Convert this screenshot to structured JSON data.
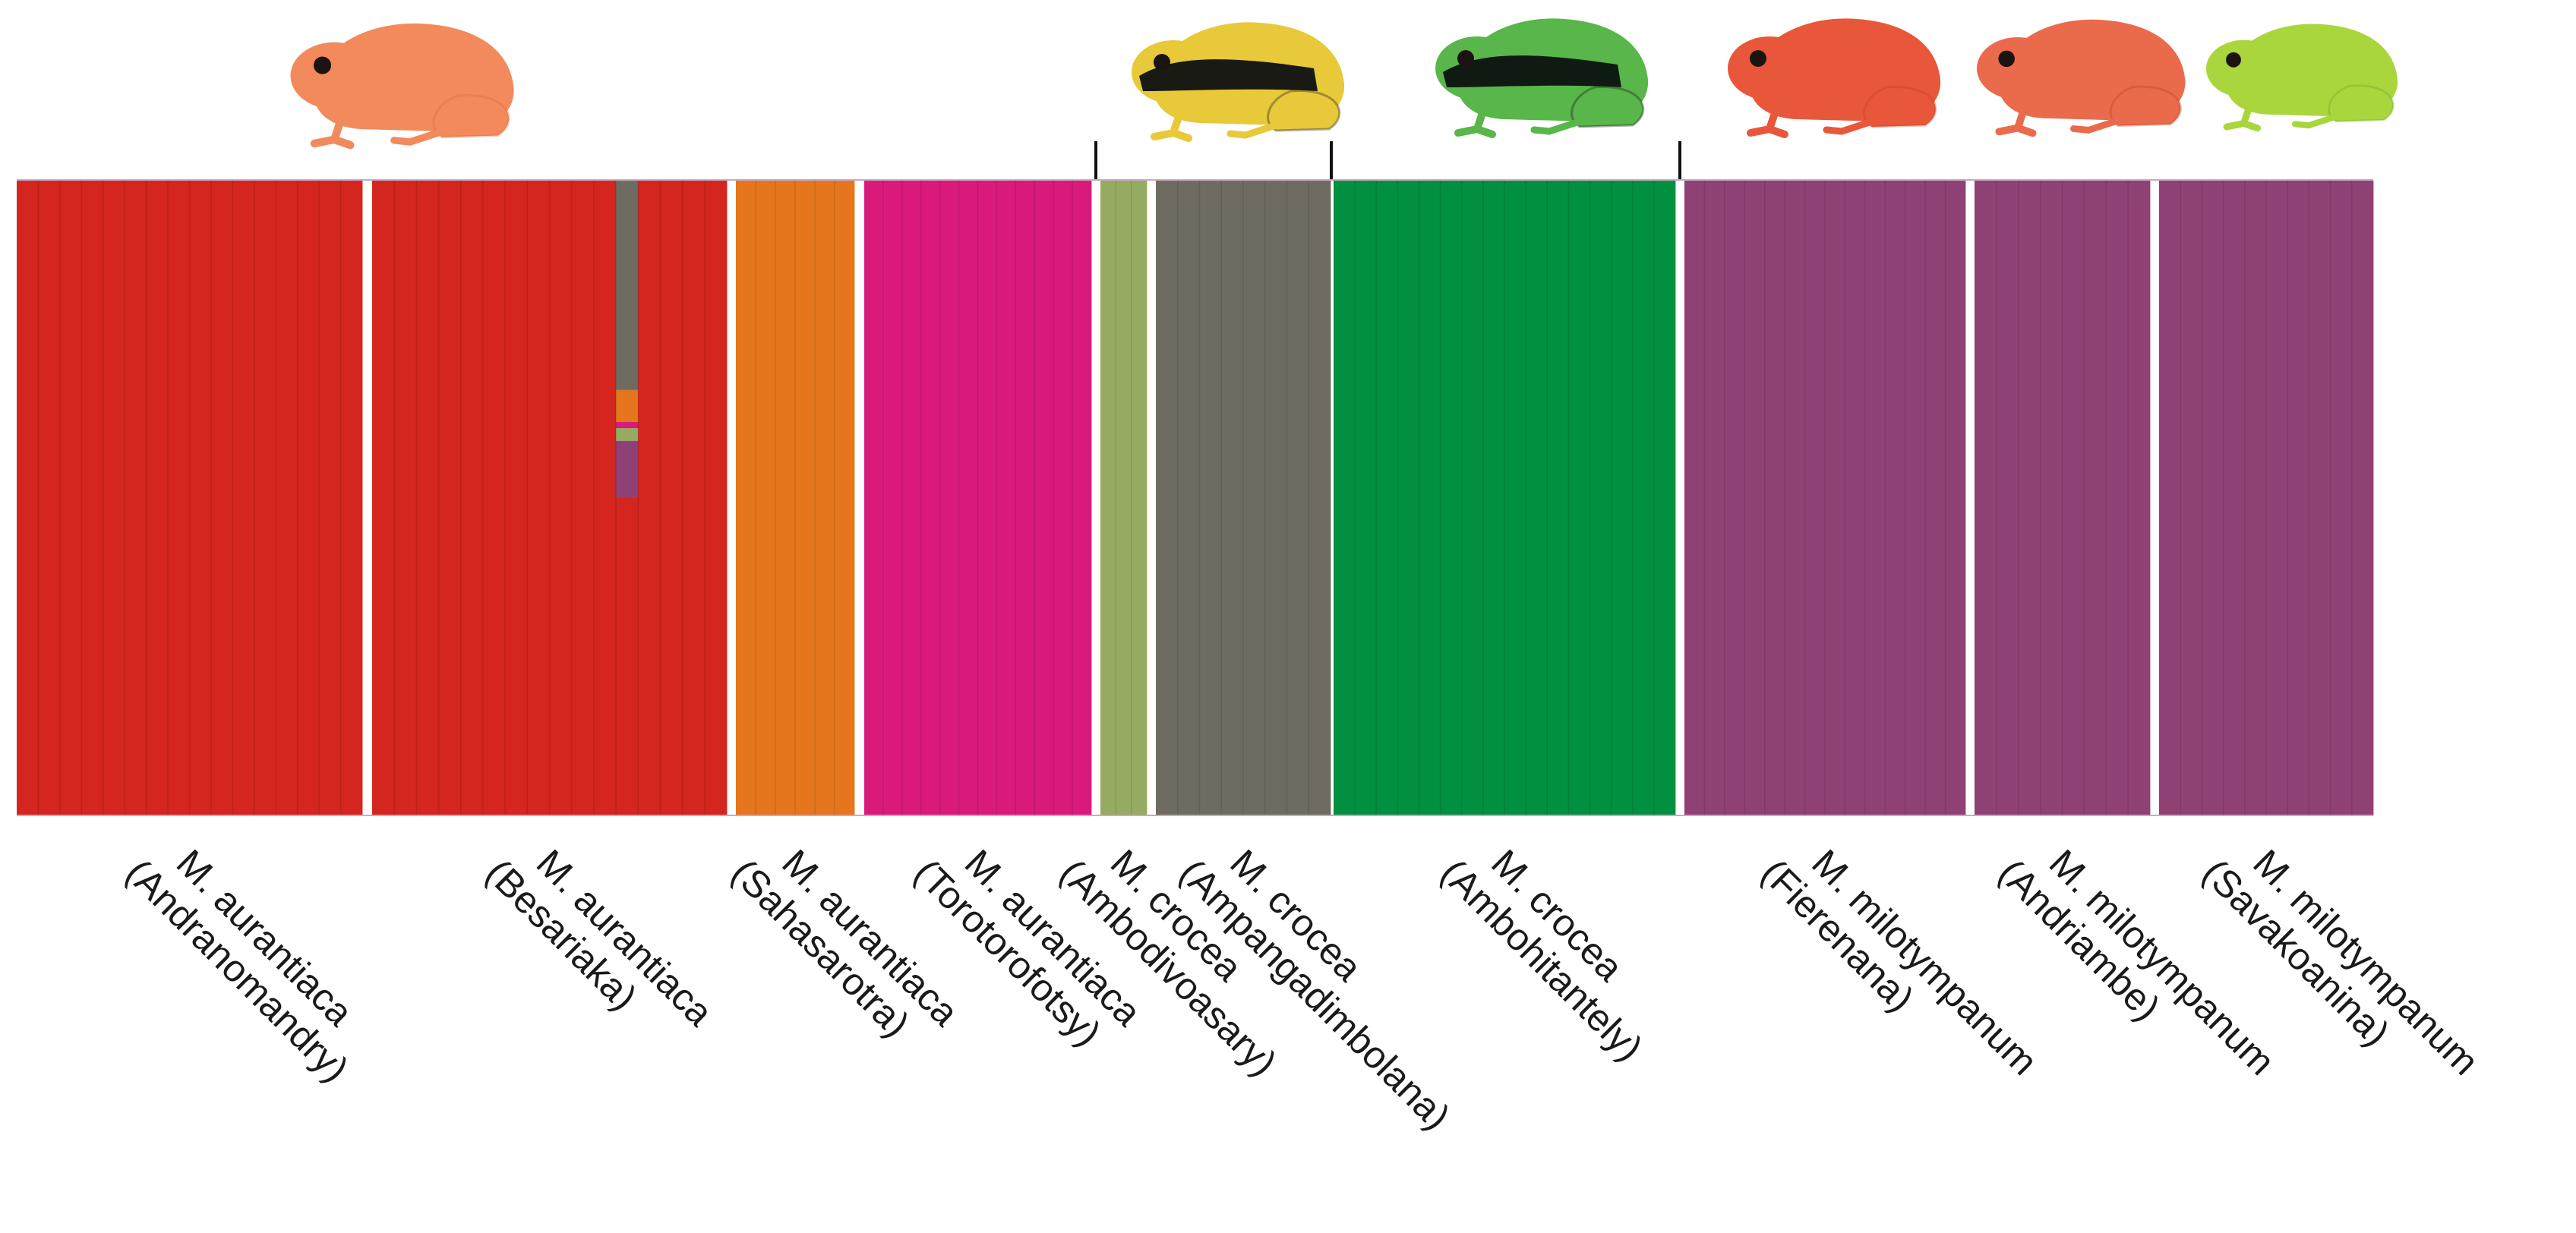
{
  "chart_data": {
    "type": "bar",
    "layout": "stacked 100% ancestry-proportion plot (STRUCTURE-style), one column per individual, grouped by population",
    "ylim": [
      0,
      1
    ],
    "grid": false,
    "legend": "none",
    "cluster_colors": {
      "aurantiaca_A": "#d4251f",
      "aurantiaca_B": "#e5761d",
      "aurantiaca_C": "#d91a7b",
      "crocea_A": "#95ab62",
      "crocea_B": "#6e6c60",
      "crocea_C": "#00903f",
      "milotympanum": "#8f4175"
    },
    "populations": [
      {
        "species": "M. aurantiaca",
        "locality": "(Andranomandry)",
        "n": 16,
        "cluster": "aurantiaca_A"
      },
      {
        "species": "M. aurantiaca",
        "locality": "(Besariaka)",
        "n": 16,
        "cluster": "aurantiaca_A",
        "admixed_individual": {
          "index": 11,
          "proportions": [
            {
              "cluster": "crocea_B",
              "value": 0.33
            },
            {
              "cluster": "aurantiaca_B",
              "value": 0.05
            },
            {
              "cluster": "aurantiaca_C",
              "value": 0.01
            },
            {
              "cluster": "crocea_A",
              "value": 0.02
            },
            {
              "cluster": "milotympanum",
              "value": 0.09
            },
            {
              "cluster": "aurantiaca_A",
              "value": 0.5
            }
          ]
        }
      },
      {
        "species": "M. aurantiaca",
        "locality": "(Sahasarotra)",
        "n": 6,
        "cluster": "aurantiaca_B"
      },
      {
        "species": "M. aurantiaca",
        "locality": "(Torotorofotsy)",
        "n": 12,
        "cluster": "aurantiaca_C"
      },
      {
        "species": "M. crocea",
        "locality": "(Ambodivoasary)",
        "n": 3,
        "cluster": "crocea_A"
      },
      {
        "species": "M. crocea",
        "locality": "(Ampangadimbolana)",
        "n": 8,
        "cluster": "crocea_B"
      },
      {
        "species": "M. crocea",
        "locality": "(Ambohitantely)",
        "n": 16,
        "cluster": "crocea_C"
      },
      {
        "species": "M. milotympanum",
        "locality": "(Fierenana)",
        "n": 14,
        "cluster": "milotympanum"
      },
      {
        "species": "M. milotympanum",
        "locality": "(Andriambe)",
        "n": 8,
        "cluster": "milotympanum"
      },
      {
        "species": "M. milotympanum",
        "locality": "(Savakoanina)",
        "n": 10,
        "cluster": "milotympanum"
      }
    ]
  },
  "frog_images": [
    {
      "name": "orange-frog-icon",
      "colors": [
        "#f28a5c",
        "#e06a3e"
      ]
    },
    {
      "name": "yellow-black-frog-icon",
      "colors": [
        "#e7c93a",
        "#1a1a14"
      ]
    },
    {
      "name": "green-black-frog-icon",
      "colors": [
        "#59b64a",
        "#0e1a12"
      ]
    },
    {
      "name": "red-frog-icon",
      "colors": [
        "#e8573a",
        "#c23e25"
      ]
    },
    {
      "name": "red-brown-frog-icon",
      "colors": [
        "#ea6a4c",
        "#b84128"
      ]
    },
    {
      "name": "lime-frog-icon",
      "colors": [
        "#a9d63c",
        "#6fa52a"
      ]
    }
  ]
}
